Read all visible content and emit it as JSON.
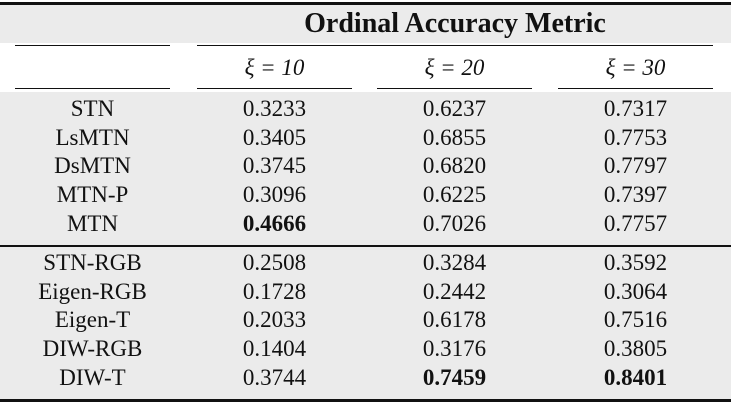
{
  "table": {
    "title": "Ordinal Accuracy Metric",
    "columns": [
      "ξ = 10",
      "ξ = 20",
      "ξ = 30"
    ],
    "rows": [
      [
        "STN",
        "0.3233",
        "0.6237",
        "0.7317"
      ],
      [
        "LsMTN",
        "0.3405",
        "0.6855",
        "0.7753"
      ],
      [
        "DsMTN",
        "0.3745",
        "0.6820",
        "0.7797"
      ],
      [
        "MTN-P",
        "0.3096",
        "0.6225",
        "0.7397"
      ],
      [
        "MTN",
        "0.4666",
        "0.7026",
        "0.7757"
      ],
      [
        "STN-RGB",
        "0.2508",
        "0.3284",
        "0.3592"
      ],
      [
        "Eigen-RGB",
        "0.1728",
        "0.2442",
        "0.3064"
      ],
      [
        "Eigen-T",
        "0.2033",
        "0.6178",
        "0.7516"
      ],
      [
        "DIW-RGB",
        "0.1404",
        "0.3176",
        "0.3805"
      ],
      [
        "DIW-T",
        "0.3744",
        "0.7459",
        "0.8401"
      ]
    ]
  }
}
